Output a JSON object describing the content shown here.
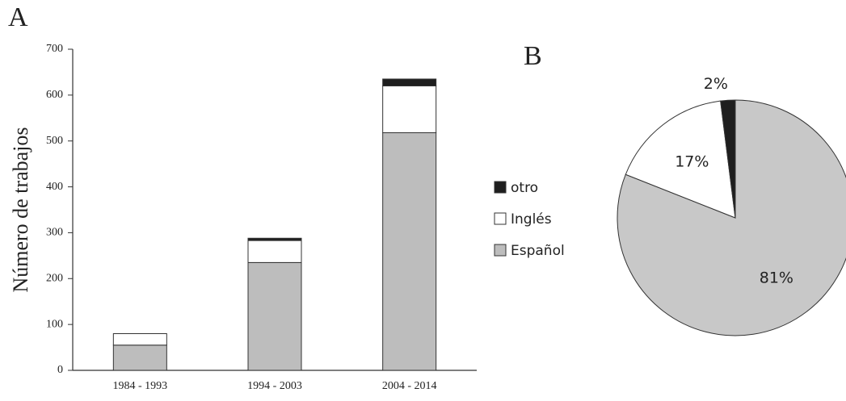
{
  "chart_data": [
    {
      "type": "bar",
      "title": "A",
      "ylabel": "Número de trabajos",
      "categories": [
        "1984 - 1993",
        "1994 - 2003",
        "2004 - 2014"
      ],
      "stacked": true,
      "series": [
        {
          "name": "Español",
          "color": "#bdbdbd",
          "values": [
            55,
            235,
            518
          ]
        },
        {
          "name": "Inglés",
          "color": "#ffffff",
          "values": [
            25,
            48,
            102
          ]
        },
        {
          "name": "otro",
          "color": "#1e1e1e",
          "values": [
            0,
            5,
            15
          ]
        }
      ],
      "ylim": [
        0,
        700
      ],
      "yticks": [
        0,
        100,
        200,
        300,
        400,
        500,
        600,
        700
      ],
      "grid": false
    },
    {
      "type": "pie",
      "title": "B",
      "categories": [
        "Español",
        "Inglés",
        "otro"
      ],
      "values": [
        81,
        17,
        2
      ],
      "value_labels": [
        "81%",
        "17%",
        "2%"
      ],
      "colors": [
        "#c8c8c8",
        "#ffffff",
        "#1e1e1e"
      ]
    }
  ]
}
